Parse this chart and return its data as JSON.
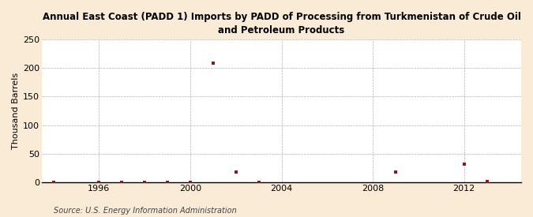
{
  "title": "Annual East Coast (PADD 1) Imports by PADD of Processing from Turkmenistan of Crude Oil\nand Petroleum Products",
  "ylabel": "Thousand Barrels",
  "source": "Source: U.S. Energy Information Administration",
  "background_color": "#faebd7",
  "plot_background_color": "#ffffff",
  "marker_color": "#8b1a1a",
  "xlim": [
    1993.5,
    2014.5
  ],
  "ylim": [
    0,
    250
  ],
  "yticks": [
    0,
    50,
    100,
    150,
    200,
    250
  ],
  "xticks": [
    1996,
    2000,
    2004,
    2008,
    2012
  ],
  "data_points": {
    "years": [
      1994,
      1996,
      1997,
      1998,
      1999,
      2000,
      2001,
      2002,
      2003,
      2009,
      2012,
      2013
    ],
    "values": [
      0,
      0,
      0,
      0,
      0,
      0,
      209,
      18,
      0,
      17,
      32,
      1
    ]
  },
  "title_fontsize": 8.5,
  "tick_fontsize": 8,
  "ylabel_fontsize": 8,
  "source_fontsize": 7
}
